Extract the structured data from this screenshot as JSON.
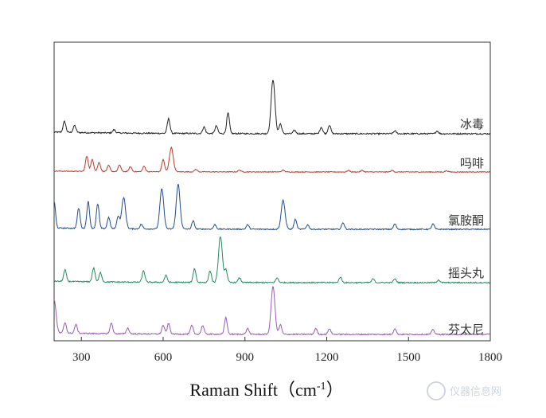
{
  "chart_data": {
    "type": "line",
    "xlabel": "Raman Shift（cm",
    "xlabel_sup": "-1",
    "xlabel_close": "）",
    "xlim": [
      200,
      1800
    ],
    "xticks": [
      300,
      600,
      900,
      1200,
      1500,
      1800
    ],
    "ylabel": "",
    "legend": "inline-right",
    "grid": false,
    "series": [
      {
        "name": "冰毒",
        "color": "#222222",
        "peaks": [
          [
            238,
            0.2
          ],
          [
            275,
            0.13
          ],
          [
            420,
            0.06
          ],
          [
            620,
            0.27
          ],
          [
            750,
            0.12
          ],
          [
            795,
            0.14
          ],
          [
            838,
            0.38
          ],
          [
            1003,
            1.0
          ],
          [
            1030,
            0.18
          ],
          [
            1082,
            0.06
          ],
          [
            1180,
            0.12
          ],
          [
            1210,
            0.16
          ],
          [
            1450,
            0.05
          ],
          [
            1605,
            0.05
          ]
        ]
      },
      {
        "name": "吗啡",
        "color": "#c0392b",
        "peaks": [
          [
            320,
            0.5
          ],
          [
            340,
            0.4
          ],
          [
            365,
            0.3
          ],
          [
            400,
            0.2
          ],
          [
            440,
            0.22
          ],
          [
            480,
            0.16
          ],
          [
            530,
            0.18
          ],
          [
            600,
            0.4
          ],
          [
            630,
            0.8
          ],
          [
            720,
            0.08
          ],
          [
            880,
            0.06
          ],
          [
            1040,
            0.06
          ],
          [
            1280,
            0.05
          ],
          [
            1330,
            0.05
          ],
          [
            1440,
            0.05
          ],
          [
            1640,
            0.04
          ]
        ]
      },
      {
        "name": "氯胺酮",
        "color": "#1f4e8c",
        "peaks": [
          [
            200,
            0.6
          ],
          [
            290,
            0.45
          ],
          [
            325,
            0.6
          ],
          [
            360,
            0.55
          ],
          [
            400,
            0.25
          ],
          [
            435,
            0.28
          ],
          [
            455,
            0.7
          ],
          [
            520,
            0.1
          ],
          [
            595,
            0.9
          ],
          [
            655,
            1.0
          ],
          [
            710,
            0.18
          ],
          [
            790,
            0.1
          ],
          [
            910,
            0.1
          ],
          [
            1040,
            0.65
          ],
          [
            1085,
            0.22
          ],
          [
            1130,
            0.1
          ],
          [
            1260,
            0.15
          ],
          [
            1450,
            0.12
          ],
          [
            1590,
            0.12
          ]
        ]
      },
      {
        "name": "摇头丸",
        "color": "#1e8f5c",
        "peaks": [
          [
            240,
            0.25
          ],
          [
            345,
            0.3
          ],
          [
            370,
            0.2
          ],
          [
            528,
            0.25
          ],
          [
            610,
            0.15
          ],
          [
            715,
            0.3
          ],
          [
            772,
            0.25
          ],
          [
            810,
            1.0
          ],
          [
            830,
            0.28
          ],
          [
            880,
            0.1
          ],
          [
            1018,
            0.1
          ],
          [
            1250,
            0.12
          ],
          [
            1370,
            0.08
          ],
          [
            1450,
            0.08
          ],
          [
            1610,
            0.06
          ]
        ]
      },
      {
        "name": "芬太尼",
        "color": "#9b59b6",
        "peaks": [
          [
            200,
            0.7
          ],
          [
            240,
            0.22
          ],
          [
            280,
            0.18
          ],
          [
            410,
            0.22
          ],
          [
            470,
            0.12
          ],
          [
            600,
            0.18
          ],
          [
            620,
            0.22
          ],
          [
            705,
            0.18
          ],
          [
            745,
            0.18
          ],
          [
            830,
            0.35
          ],
          [
            910,
            0.12
          ],
          [
            1003,
            1.0
          ],
          [
            1030,
            0.2
          ],
          [
            1160,
            0.12
          ],
          [
            1210,
            0.12
          ],
          [
            1450,
            0.12
          ],
          [
            1590,
            0.1
          ]
        ]
      }
    ]
  },
  "watermark": "仪器信息网"
}
